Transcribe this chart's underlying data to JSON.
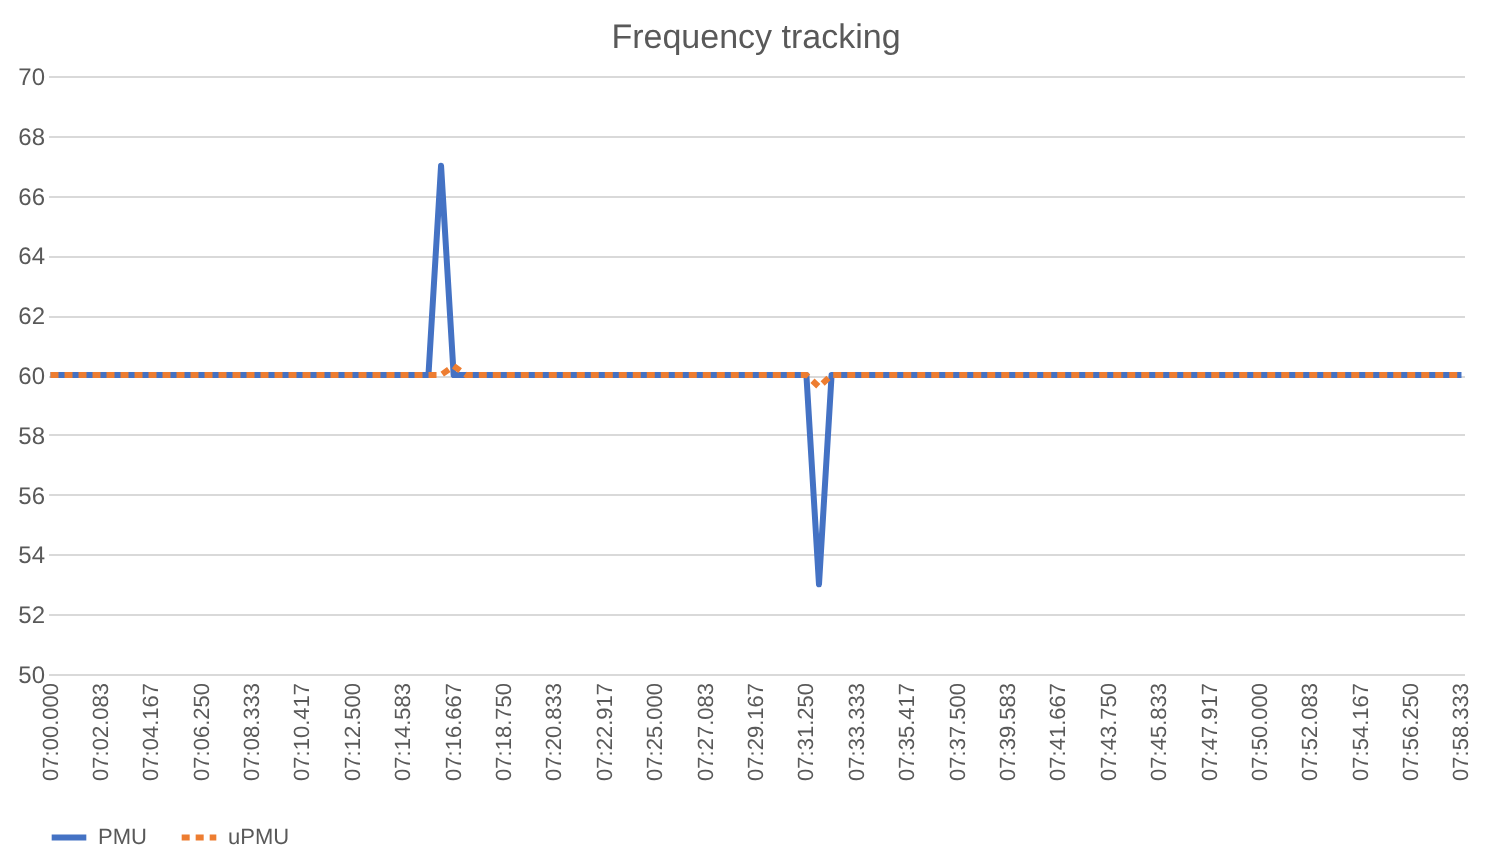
{
  "chart_data": {
    "type": "line",
    "title": "Frequency tracking",
    "categories": [
      "07:00.000",
      null,
      null,
      null,
      "07:02.083",
      null,
      null,
      null,
      "07:04.167",
      null,
      null,
      null,
      "07:06.250",
      null,
      null,
      null,
      "07:08.333",
      null,
      null,
      null,
      "07:10.417",
      null,
      null,
      null,
      "07:12.500",
      null,
      null,
      null,
      "07:14.583",
      null,
      null,
      null,
      "07:16.667",
      null,
      null,
      null,
      "07:18.750",
      null,
      null,
      null,
      "07:20.833",
      null,
      null,
      null,
      "07:22.917",
      null,
      null,
      null,
      "07:25.000",
      null,
      null,
      null,
      "07:27.083",
      null,
      null,
      null,
      "07:29.167",
      null,
      null,
      null,
      "07:31.250",
      null,
      null,
      null,
      "07:33.333",
      null,
      null,
      null,
      "07:35.417",
      null,
      null,
      null,
      "07:37.500",
      null,
      null,
      null,
      "07:39.583",
      null,
      null,
      null,
      "07:41.667",
      null,
      null,
      null,
      "07:43.750",
      null,
      null,
      null,
      "07:45.833",
      null,
      null,
      null,
      "07:47.917",
      null,
      null,
      null,
      "07:50.000",
      null,
      null,
      null,
      "07:52.083",
      null,
      null,
      null,
      "07:54.167",
      null,
      null,
      null,
      "07:56.250",
      null,
      null,
      null,
      "07:58.333"
    ],
    "series": [
      {
        "name": "PMU",
        "color": "#4472c4",
        "line_style": "solid",
        "values": [
          60,
          60,
          60,
          60,
          60,
          60,
          60,
          60,
          60,
          60,
          60,
          60,
          60,
          60,
          60,
          60,
          60,
          60,
          60,
          60,
          60,
          60,
          60,
          60,
          60,
          60,
          60,
          60,
          60,
          60,
          60,
          67,
          60,
          60,
          60,
          60,
          60,
          60,
          60,
          60,
          60,
          60,
          60,
          60,
          60,
          60,
          60,
          60,
          60,
          60,
          60,
          60,
          60,
          60,
          60,
          60,
          60,
          60,
          60,
          60,
          60,
          53,
          60,
          60,
          60,
          60,
          60,
          60,
          60,
          60,
          60,
          60,
          60,
          60,
          60,
          60,
          60,
          60,
          60,
          60,
          60,
          60,
          60,
          60,
          60,
          60,
          60,
          60,
          60,
          60,
          60,
          60,
          60,
          60,
          60,
          60,
          60,
          60,
          60,
          60,
          60,
          60,
          60,
          60,
          60,
          60,
          60,
          60,
          60,
          60,
          60,
          60,
          60
        ]
      },
      {
        "name": "uPMU",
        "color": "#ed7d31",
        "line_style": "dashed",
        "values": [
          60,
          60,
          60,
          60,
          60,
          60,
          60,
          60,
          60,
          60,
          60,
          60,
          60,
          60,
          60,
          60,
          60,
          60,
          60,
          60,
          60,
          60,
          60,
          60,
          60,
          60,
          60,
          60,
          60,
          60,
          60,
          60,
          60.3,
          60,
          60,
          60,
          60,
          60,
          60,
          60,
          60,
          60,
          60,
          60,
          60,
          60,
          60,
          60,
          60,
          60,
          60,
          60,
          60,
          60,
          60,
          60,
          60,
          60,
          60,
          60,
          60,
          59.6,
          60,
          60,
          60,
          60,
          60,
          60,
          60,
          60,
          60,
          60,
          60,
          60,
          60,
          60,
          60,
          60,
          60,
          60,
          60,
          60,
          60,
          60,
          60,
          60,
          60,
          60,
          60,
          60,
          60,
          60,
          60,
          60,
          60,
          60,
          60,
          60,
          60,
          60,
          60,
          60,
          60,
          60,
          60,
          60,
          60,
          60,
          60,
          60,
          60,
          60,
          60
        ]
      }
    ],
    "ylim": [
      50,
      70
    ],
    "yticks": [
      50,
      52,
      54,
      56,
      58,
      60,
      62,
      64,
      66,
      68,
      70
    ],
    "grid": "y",
    "legend": "bottom",
    "marker": "none"
  }
}
